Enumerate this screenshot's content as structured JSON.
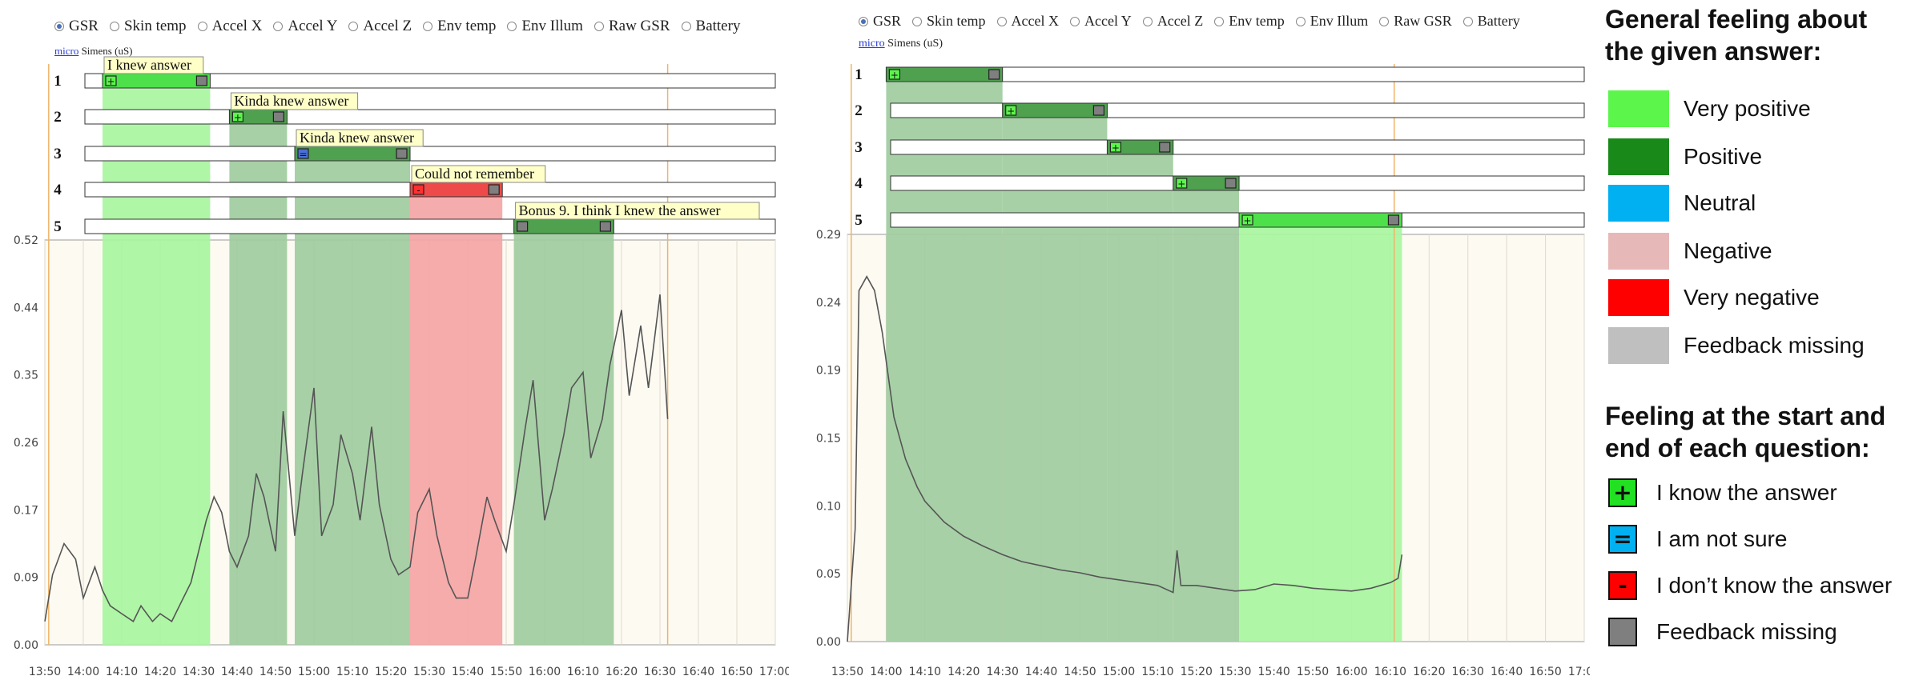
{
  "radio_options": [
    "GSR",
    "Skin temp",
    "Accel X",
    "Accel Y",
    "Accel Z",
    "Env temp",
    "Env Illum",
    "Raw GSR",
    "Battery"
  ],
  "selected_option": "GSR",
  "units_link": "micro",
  "units_text": "Simens (uS)",
  "colors": {
    "very_positive": "#5cf54c",
    "positive": "#198a19",
    "neutral": "#00b0f0",
    "negative": "#e6b9b8",
    "very_negative": "#ff0000",
    "feedback_missing": "#bfbfbf",
    "plot_bg": "#fdfaf2",
    "line": "#555555"
  },
  "chart_data": [
    {
      "type": "line",
      "ylim": [
        0,
        0.52
      ],
      "yticks": [
        "0.00",
        "0.09",
        "0.17",
        "0.26",
        "0.35",
        "0.44",
        "0.52"
      ],
      "xticks": [
        "13:50",
        "14:00",
        "14:10",
        "14:20",
        "14:30",
        "14:40",
        "14:50",
        "15:00",
        "15:10",
        "15:20",
        "15:30",
        "15:40",
        "15:50",
        "16:00",
        "16:10",
        "16:20",
        "16:30",
        "16:40",
        "16:50",
        "17:00"
      ],
      "xlim": [
        "13:50",
        "17:00"
      ],
      "questions": [
        {
          "label": "1",
          "tooltip": "I knew answer",
          "start": "14:05",
          "end": "14:33",
          "feeling": "very_positive",
          "start_icon": "plus",
          "end_icon": "missing"
        },
        {
          "label": "2",
          "tooltip": "Kinda knew answer",
          "start": "14:38",
          "end": "14:53",
          "feeling": "positive",
          "start_icon": "plus",
          "end_icon": "missing"
        },
        {
          "label": "3",
          "tooltip": "Kinda knew answer",
          "start": "14:55",
          "end": "15:25",
          "feeling": "positive",
          "start_icon": "equal",
          "end_icon": "missing"
        },
        {
          "label": "4",
          "tooltip": "Could not remember",
          "start": "15:25",
          "end": "15:49",
          "feeling": "very_negative",
          "start_icon": "minus",
          "end_icon": "missing"
        },
        {
          "label": "5",
          "tooltip": "Bonus 9. I think I knew the answer",
          "start": "15:52",
          "end": "16:18",
          "feeling": "positive",
          "start_icon": "missing",
          "end_icon": "missing"
        }
      ],
      "series": [
        {
          "x": [
            "13:50",
            "13:52",
            "13:55",
            "13:58",
            "14:00",
            "14:03",
            "14:05",
            "14:07",
            "14:10",
            "14:13",
            "14:15",
            "14:18",
            "14:20",
            "14:23",
            "14:25",
            "14:28",
            "14:30",
            "14:32",
            "14:34",
            "14:36",
            "14:38",
            "14:40",
            "14:43",
            "14:45",
            "14:47",
            "14:50",
            "14:52",
            "14:55",
            "14:57",
            "15:00",
            "15:02",
            "15:05",
            "15:07",
            "15:10",
            "15:12",
            "15:15",
            "15:17",
            "15:20",
            "15:22",
            "15:25",
            "15:27",
            "15:30",
            "15:32",
            "15:35",
            "15:37",
            "15:40",
            "15:42",
            "15:45",
            "15:47",
            "15:50",
            "15:52",
            "15:55",
            "15:57",
            "16:00",
            "16:02",
            "16:05",
            "16:07",
            "16:10",
            "16:12",
            "16:15",
            "16:17",
            "16:20",
            "16:22",
            "16:25",
            "16:27",
            "16:30",
            "16:32"
          ],
          "y": [
            0.03,
            0.09,
            0.13,
            0.11,
            0.06,
            0.1,
            0.07,
            0.05,
            0.04,
            0.03,
            0.05,
            0.03,
            0.04,
            0.03,
            0.05,
            0.08,
            0.12,
            0.16,
            0.19,
            0.17,
            0.12,
            0.1,
            0.14,
            0.22,
            0.19,
            0.12,
            0.3,
            0.14,
            0.22,
            0.33,
            0.14,
            0.18,
            0.27,
            0.22,
            0.16,
            0.28,
            0.18,
            0.11,
            0.09,
            0.1,
            0.17,
            0.2,
            0.14,
            0.08,
            0.06,
            0.06,
            0.11,
            0.19,
            0.16,
            0.12,
            0.18,
            0.28,
            0.34,
            0.16,
            0.2,
            0.27,
            0.33,
            0.35,
            0.24,
            0.29,
            0.36,
            0.43,
            0.32,
            0.41,
            0.33,
            0.45,
            0.29
          ]
        }
      ]
    },
    {
      "type": "line",
      "ylim": [
        0,
        0.29
      ],
      "yticks": [
        "0.00",
        "0.05",
        "0.10",
        "0.15",
        "0.19",
        "0.24",
        "0.29"
      ],
      "xticks": [
        "13:50",
        "14:00",
        "14:10",
        "14:20",
        "14:30",
        "14:40",
        "14:50",
        "15:00",
        "15:10",
        "15:20",
        "15:30",
        "15:40",
        "15:50",
        "16:00",
        "16:10",
        "16:20",
        "16:30",
        "16:40",
        "16:50",
        "17:00"
      ],
      "xlim": [
        "13:50",
        "17:00"
      ],
      "questions": [
        {
          "label": "1",
          "tooltip": "",
          "start": "14:00",
          "end": "14:30",
          "feeling": "positive",
          "start_icon": "plus",
          "end_icon": "missing"
        },
        {
          "label": "2",
          "tooltip": "",
          "start": "14:30",
          "end": "14:57",
          "feeling": "positive",
          "start_icon": "plus",
          "end_icon": "missing"
        },
        {
          "label": "3",
          "tooltip": "",
          "start": "14:57",
          "end": "15:14",
          "feeling": "positive",
          "start_icon": "plus",
          "end_icon": "missing"
        },
        {
          "label": "4",
          "tooltip": "",
          "start": "15:14",
          "end": "15:31",
          "feeling": "positive",
          "start_icon": "plus",
          "end_icon": "missing"
        },
        {
          "label": "5",
          "tooltip": "",
          "start": "15:31",
          "end": "16:13",
          "feeling": "very_positive",
          "start_icon": "plus",
          "end_icon": "missing"
        }
      ],
      "series": [
        {
          "x": [
            "13:50",
            "13:52",
            "13:53",
            "13:55",
            "13:57",
            "13:59",
            "14:00",
            "14:02",
            "14:05",
            "14:08",
            "14:10",
            "14:15",
            "14:20",
            "14:25",
            "14:30",
            "14:35",
            "14:40",
            "14:45",
            "14:50",
            "14:55",
            "15:00",
            "15:05",
            "15:10",
            "15:14",
            "15:15",
            "15:16",
            "15:20",
            "15:25",
            "15:30",
            "15:35",
            "15:40",
            "15:45",
            "15:50",
            "15:55",
            "16:00",
            "16:05",
            "16:10",
            "16:12",
            "16:13"
          ],
          "y": [
            0.0,
            0.08,
            0.25,
            0.26,
            0.25,
            0.22,
            0.2,
            0.16,
            0.13,
            0.11,
            0.1,
            0.085,
            0.075,
            0.068,
            0.062,
            0.057,
            0.054,
            0.051,
            0.049,
            0.046,
            0.044,
            0.042,
            0.04,
            0.035,
            0.065,
            0.04,
            0.04,
            0.038,
            0.036,
            0.037,
            0.041,
            0.04,
            0.038,
            0.037,
            0.036,
            0.038,
            0.042,
            0.045,
            0.062
          ]
        }
      ]
    }
  ],
  "legend": {
    "title1": "General feeling about the given answer:",
    "items": [
      {
        "label": "Very positive",
        "color_key": "very_positive"
      },
      {
        "label": "Positive",
        "color_key": "positive"
      },
      {
        "label": "Neutral",
        "color_key": "neutral"
      },
      {
        "label": "Negative",
        "color_key": "negative"
      },
      {
        "label": "Very negative",
        "color_key": "very_negative"
      },
      {
        "label": "Feedback missing",
        "color_key": "feedback_missing"
      }
    ],
    "title2": "Feeling at the start and end of each question:",
    "icons": [
      {
        "symbol": "+",
        "label": "I know the answer",
        "color_key": "very_positive"
      },
      {
        "symbol": "=",
        "label": "I am not sure",
        "color_key": "neutral"
      },
      {
        "symbol": "-",
        "label": "I don’t know the answer",
        "color_key": "very_negative"
      },
      {
        "symbol": "",
        "label": "Feedback missing",
        "color_key": "feedback_missing_dark"
      }
    ]
  }
}
